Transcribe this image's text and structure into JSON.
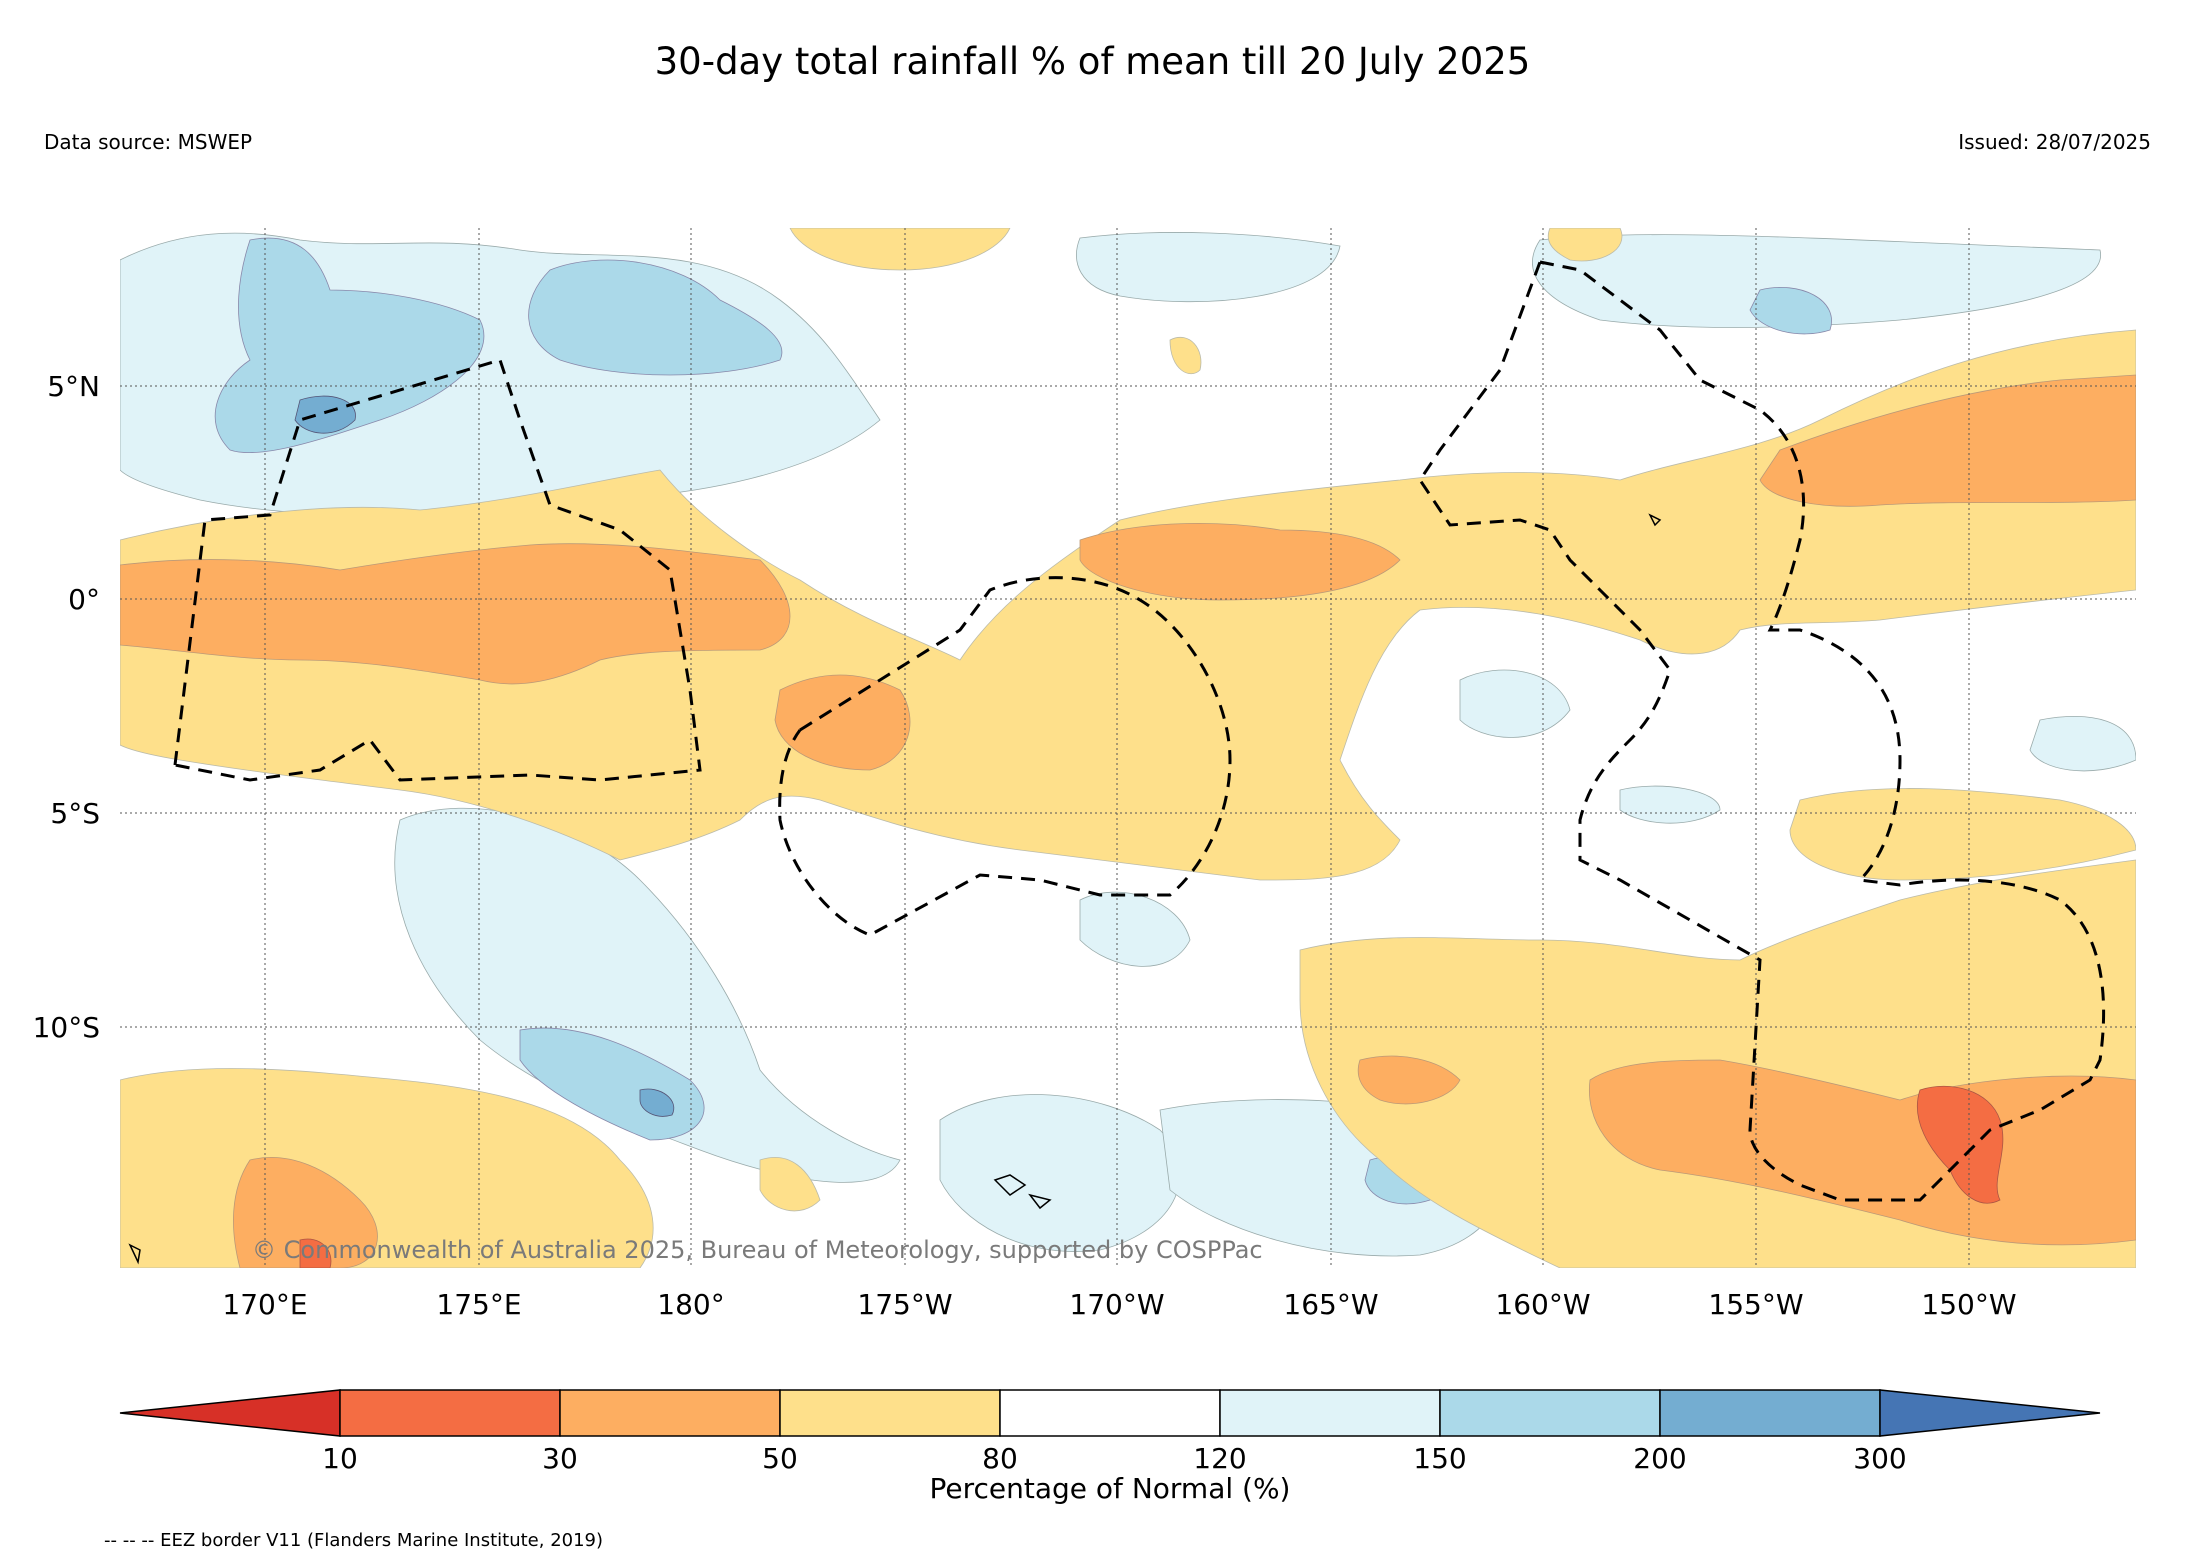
{
  "title": "30-day total rainfall % of mean till 20 July 2025",
  "data_source": "Data source: MSWEP",
  "issued": "Issued: 28/07/2025",
  "copyright": "© Commonwealth of Australia 2025, Bureau of Meteorology, supported by COSPPac",
  "eez_note": "-- -- -- EEZ border V11 (Flanders Marine Institute, 2019)",
  "map": {
    "lon_ticks": [
      "170°E",
      "175°E",
      "180°",
      "175°W",
      "170°W",
      "165°W",
      "160°W",
      "155°W",
      "150°W"
    ],
    "lat_ticks": [
      "5°N",
      "0°",
      "5°S",
      "10°S"
    ],
    "gridlines": true
  },
  "colorbar": {
    "title": "Percentage of Normal (%)",
    "boundaries": [
      "10",
      "30",
      "50",
      "80",
      "120",
      "150",
      "200",
      "300"
    ],
    "colors": {
      "lt10": "#d73027",
      "10_30": "#f46d43",
      "30_50": "#fdae61",
      "50_80": "#fee08b",
      "80_120": "#ffffff",
      "120_150": "#e0f3f8",
      "150_200": "#abd9e9",
      "200_300": "#74add1",
      "gt300": "#4575b4"
    }
  }
}
